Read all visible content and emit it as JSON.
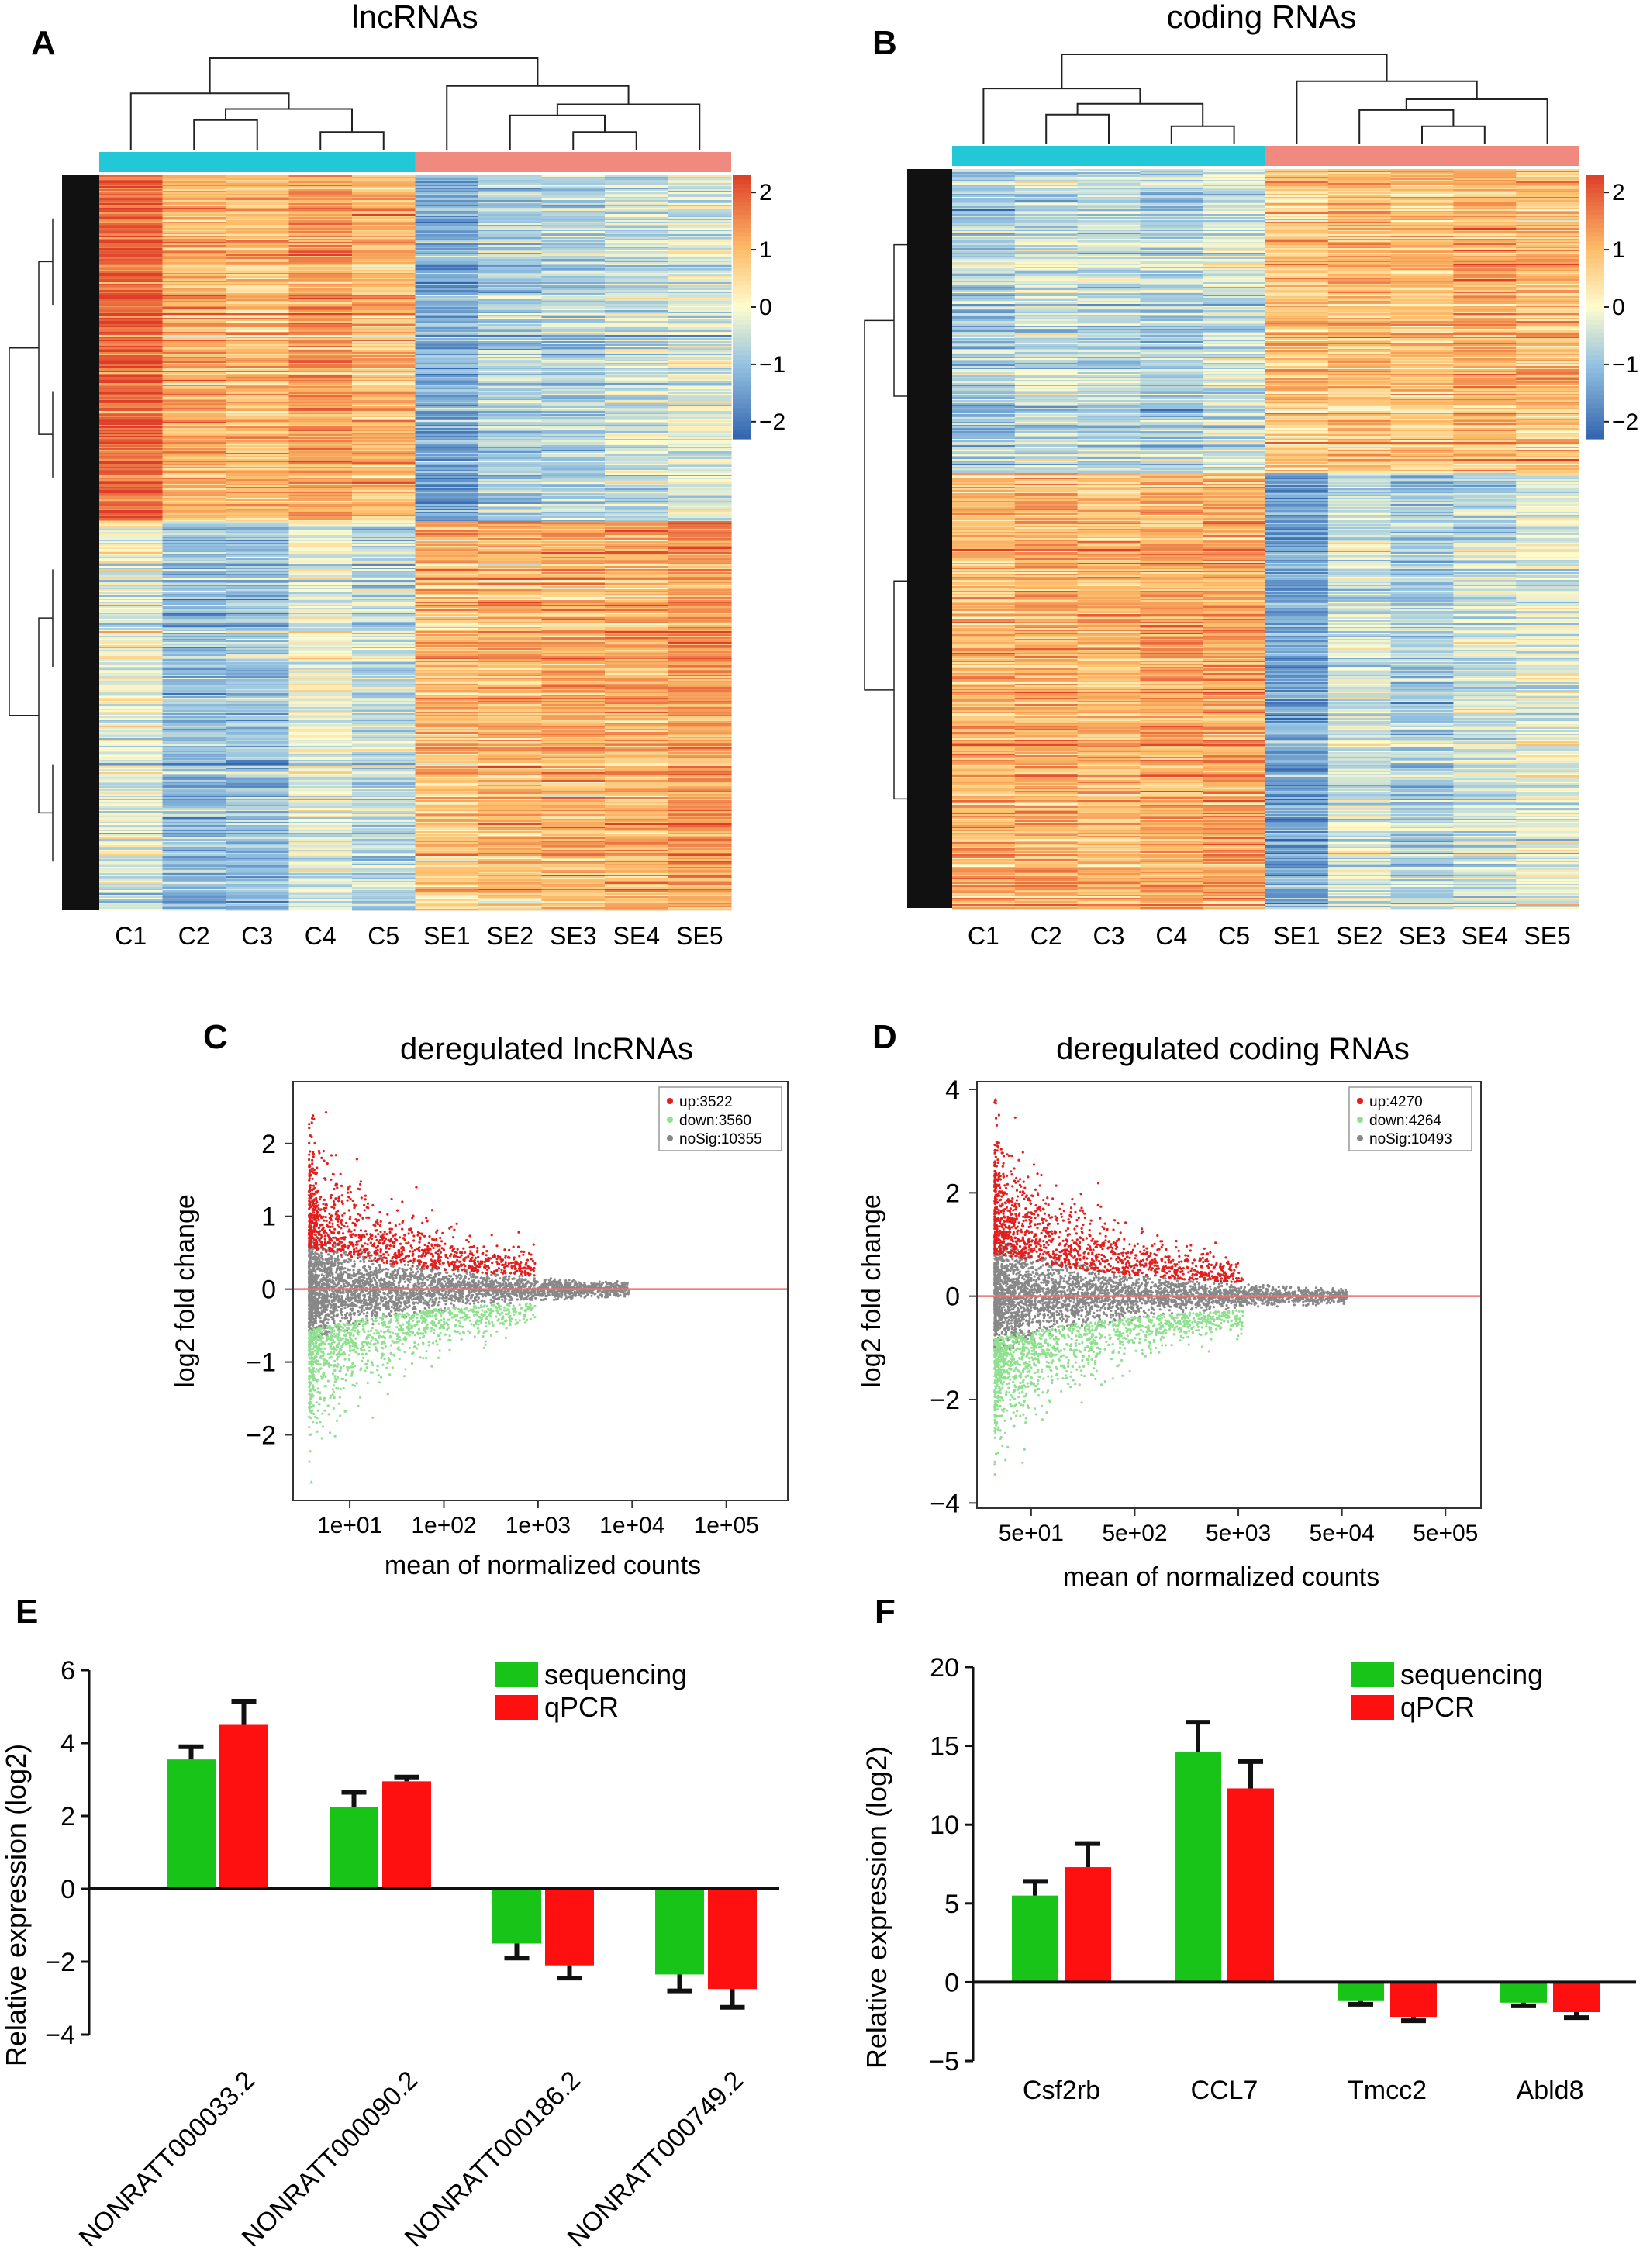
{
  "chart_data": [
    {
      "panel": "A",
      "type": "heatmap",
      "title": "lncRNAs",
      "columns": [
        "C1",
        "C2",
        "C3",
        "C4",
        "C5",
        "SE1",
        "SE2",
        "SE3",
        "SE4",
        "SE5"
      ],
      "groups": [
        {
          "color": "#22c8d8",
          "columns": [
            0,
            1,
            2,
            3,
            4
          ]
        },
        {
          "color": "#f08a7e",
          "columns": [
            5,
            6,
            7,
            8,
            9
          ]
        }
      ],
      "colorbar": {
        "ticks": [
          2,
          1,
          0,
          -1,
          -2
        ],
        "tick_labels": [
          "2",
          "1",
          "0",
          "−1",
          "−2"
        ],
        "range": [
          -2.3,
          2.3
        ]
      },
      "blocks": [
        {
          "row_fraction": 0.47,
          "means": [
            1.9,
            1.1,
            1.0,
            1.3,
            1.0,
            -1.3,
            -0.8,
            -0.7,
            -0.5,
            -0.3
          ]
        },
        {
          "row_fraction": 0.53,
          "means": [
            -0.2,
            -1.1,
            -1.0,
            -0.2,
            -0.6,
            0.9,
            1.0,
            1.1,
            1.1,
            1.3
          ]
        }
      ]
    },
    {
      "panel": "B",
      "type": "heatmap",
      "title": "coding RNAs",
      "columns": [
        "C1",
        "C2",
        "C3",
        "C4",
        "C5",
        "SE1",
        "SE2",
        "SE3",
        "SE4",
        "SE5"
      ],
      "groups": [
        {
          "color": "#22c8d8",
          "columns": [
            0,
            1,
            2,
            3,
            4
          ]
        },
        {
          "color": "#f08a7e",
          "columns": [
            5,
            6,
            7,
            8,
            9
          ]
        }
      ],
      "colorbar": {
        "ticks": [
          2,
          1,
          0,
          -1,
          -2
        ],
        "tick_labels": [
          "2",
          "1",
          "0",
          "−1",
          "−2"
        ],
        "range": [
          -2.3,
          2.3
        ]
      },
      "blocks": [
        {
          "row_fraction": 0.41,
          "means": [
            -0.8,
            -0.5,
            -0.6,
            -0.7,
            -0.4,
            0.8,
            1.0,
            0.9,
            1.1,
            1.0
          ]
        },
        {
          "row_fraction": 0.59,
          "means": [
            1.0,
            1.1,
            1.0,
            1.2,
            1.2,
            -1.4,
            -0.4,
            -0.8,
            -0.5,
            -0.2
          ]
        }
      ]
    },
    {
      "panel": "C",
      "type": "scatter",
      "title": "deregulated lncRNAs",
      "xlabel": "mean of normalized counts",
      "ylabel": "log2 fold change",
      "xscale": "log10",
      "xlim": [
        2.5,
        450000
      ],
      "ylim": [
        -2.9,
        2.85
      ],
      "xticks": [
        10,
        100,
        1000,
        10000,
        100000
      ],
      "xtick_labels": [
        "1e+01",
        "1e+02",
        "1e+03",
        "1e+04",
        "1e+05"
      ],
      "yticks": [
        2,
        1,
        0,
        -1,
        -2
      ],
      "ytick_labels": [
        "2",
        "1",
        "0",
        "−1",
        "−2"
      ],
      "cap": 2.65,
      "legend": {
        "position": "top-right",
        "entries": [
          {
            "label": "up:3522",
            "color": "#e21f1f"
          },
          {
            "label": "down:3560",
            "color": "#8fe08f"
          },
          {
            "label": "noSig:10355",
            "color": "#888888"
          }
        ]
      },
      "series": [
        {
          "label": "up:3522",
          "count": 3522,
          "color": "#e21f1f"
        },
        {
          "label": "down:3560",
          "count": 3560,
          "color": "#8fe08f"
        },
        {
          "label": "noSig:10355",
          "count": 10355,
          "color": "#888888"
        }
      ],
      "reference_line": {
        "y": 0,
        "color": "#f07070"
      }
    },
    {
      "panel": "D",
      "type": "scatter",
      "title": "deregulated coding RNAs",
      "xlabel": "mean of normalized counts",
      "ylabel": "log2 fold change",
      "xscale": "log10",
      "xlim": [
        15,
        1100000
      ],
      "ylim": [
        -4.1,
        4.15
      ],
      "xticks": [
        50,
        500,
        5000,
        50000,
        500000
      ],
      "xtick_labels": [
        "5e+01",
        "5e+02",
        "5e+03",
        "5e+04",
        "5e+05"
      ],
      "yticks": [
        4,
        2,
        0,
        -2,
        -4
      ],
      "ytick_labels": [
        "4",
        "2",
        "0",
        "−2",
        "−4"
      ],
      "cap": 3.8,
      "legend": {
        "position": "top-right",
        "entries": [
          {
            "label": "up:4270",
            "color": "#e21f1f"
          },
          {
            "label": "down:4264",
            "color": "#8fe08f"
          },
          {
            "label": "noSig:10493",
            "color": "#888888"
          }
        ]
      },
      "series": [
        {
          "label": "up:4270",
          "count": 4270,
          "color": "#e21f1f"
        },
        {
          "label": "down:4264",
          "count": 4264,
          "color": "#8fe08f"
        },
        {
          "label": "noSig:10493",
          "count": 10493,
          "color": "#888888"
        }
      ],
      "reference_line": {
        "y": 0,
        "color": "#f07070"
      }
    },
    {
      "panel": "E",
      "type": "bar",
      "ylabel": "Relative expression (log2)",
      "ylim": [
        -4,
        6
      ],
      "yticks": [
        -4,
        -2,
        0,
        2,
        4,
        6
      ],
      "ytick_labels": [
        "−4",
        "−2",
        "0",
        "2",
        "4",
        "6"
      ],
      "categories": [
        "NONRATT000033.2",
        "NONRATT000090.2",
        "NONRATT000186.2",
        "NONRATT000749.2"
      ],
      "category_label_rotation": -45,
      "legend": {
        "position": "top-right"
      },
      "series": [
        {
          "name": "sequencing",
          "color": "#19c419",
          "values": [
            3.55,
            2.25,
            -1.5,
            -2.35
          ],
          "errors": [
            0.35,
            0.4,
            0.4,
            0.45
          ]
        },
        {
          "name": "qPCR",
          "color": "#ff1010",
          "values": [
            4.5,
            2.95,
            -2.1,
            -2.75
          ],
          "errors": [
            0.65,
            0.12,
            0.35,
            0.5
          ]
        }
      ]
    },
    {
      "panel": "F",
      "type": "bar",
      "ylabel": "Relative expression (log2)",
      "ylim": [
        -5,
        20
      ],
      "yticks": [
        -5,
        0,
        5,
        10,
        15,
        20
      ],
      "ytick_labels": [
        "−5",
        "0",
        "5",
        "10",
        "15",
        "20"
      ],
      "categories": [
        "Csf2rb",
        "CCL7",
        "Tmcc2",
        "Abld8"
      ],
      "legend": {
        "position": "top-right"
      },
      "series": [
        {
          "name": "sequencing",
          "color": "#19c419",
          "values": [
            5.5,
            14.6,
            -1.2,
            -1.3
          ],
          "errors": [
            0.9,
            1.9,
            0.2,
            0.2
          ]
        },
        {
          "name": "qPCR",
          "color": "#ff1010",
          "values": [
            7.3,
            12.3,
            -2.2,
            -1.9
          ],
          "errors": [
            1.5,
            1.7,
            0.25,
            0.35
          ]
        }
      ]
    }
  ]
}
